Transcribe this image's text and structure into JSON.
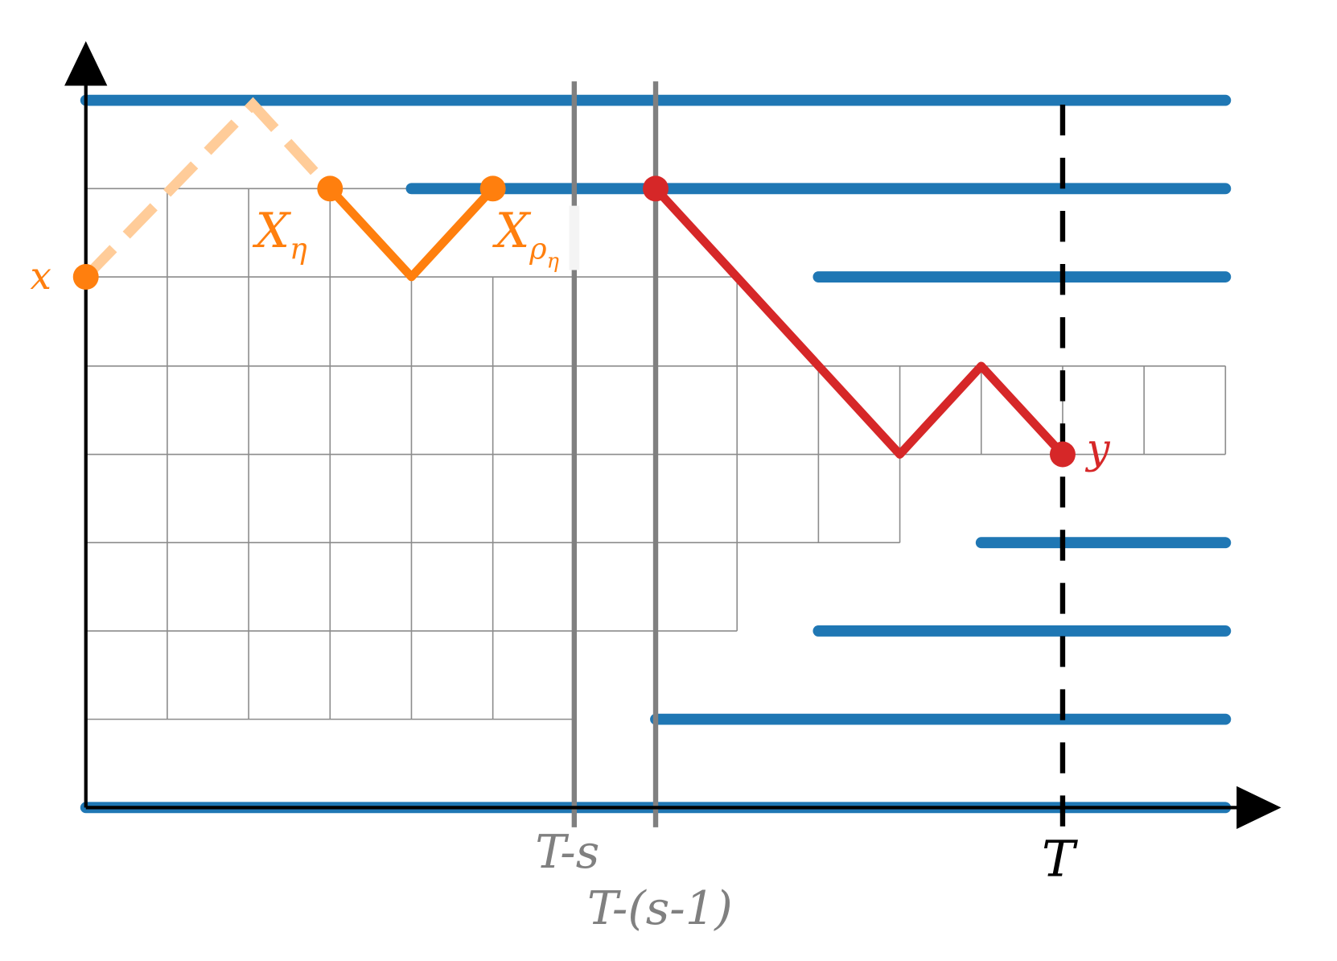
{
  "labels": {
    "x": "x",
    "x_eta": {
      "main": "X",
      "sub": "η"
    },
    "x_rho_eta": {
      "main": "X",
      "sub": "ρ",
      "subsub": "η"
    },
    "y": "y",
    "t_minus_s": "T-s",
    "t_minus_s_minus_1": "T-(s-1)",
    "t": "T"
  }
}
